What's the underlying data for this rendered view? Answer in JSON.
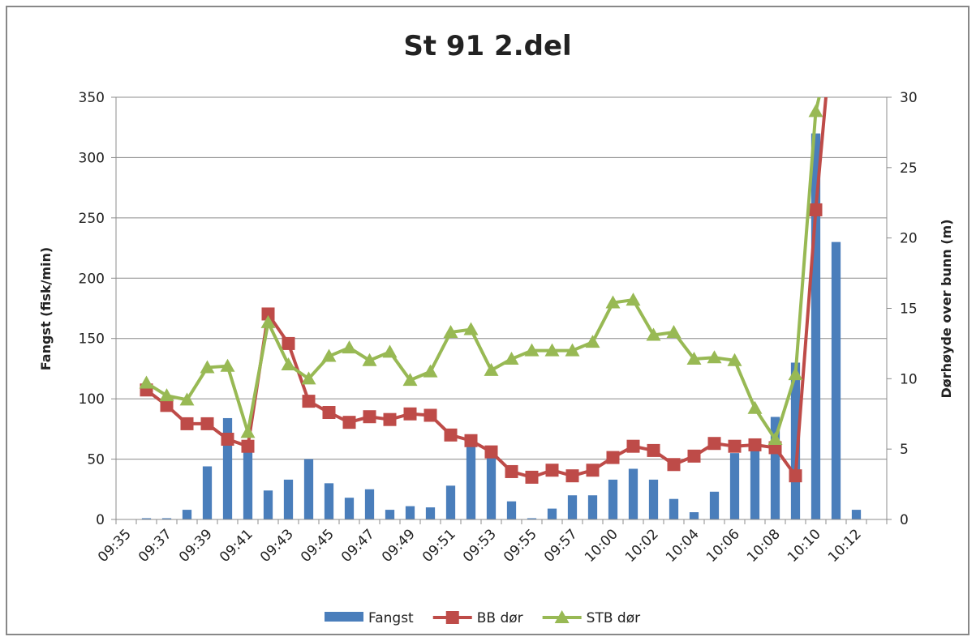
{
  "chart_data": {
    "type": "bar-line",
    "title": "St 91 2.del",
    "y_label": "Fangst (fisk/min)",
    "y2_label": "Dørhøyde over bunn (m)",
    "categories": [
      "09:35",
      null,
      "09:37",
      null,
      "09:39",
      null,
      "09:41",
      null,
      "09:43",
      null,
      "09:45",
      null,
      "09:47",
      null,
      "09:49",
      null,
      "09:51",
      null,
      "09:53",
      null,
      "09:55",
      null,
      "09:57",
      null,
      "10:00",
      null,
      "10:02",
      null,
      "10:04",
      null,
      "10:06",
      null,
      "10:08",
      null,
      "10:10",
      null,
      "10:12",
      null
    ],
    "ylim": [
      0,
      350
    ],
    "yticks": [
      0,
      50,
      100,
      150,
      200,
      250,
      300,
      350
    ],
    "y2lim": [
      0,
      30
    ],
    "y2ticks": [
      0,
      5,
      10,
      15,
      20,
      25,
      30
    ],
    "grid": true,
    "legend": "bottom",
    "series": [
      {
        "name": "Fangst",
        "type": "bar",
        "color": "#4a7ebb",
        "values": [
          null,
          1,
          1,
          8,
          44,
          84,
          58,
          24,
          33,
          50,
          30,
          18,
          25,
          8,
          11,
          10,
          28,
          65,
          52,
          15,
          1,
          9,
          20,
          20,
          33,
          42,
          33,
          17,
          6,
          23,
          55,
          60,
          85,
          130,
          320,
          230,
          8,
          null
        ]
      },
      {
        "name": "BB dør",
        "type": "line",
        "axis": "y2",
        "color": "#be4b48",
        "marker": "square",
        "values": [
          null,
          9.2,
          8.1,
          6.8,
          6.8,
          5.7,
          5.2,
          14.6,
          12.5,
          8.4,
          7.6,
          6.9,
          7.3,
          7.1,
          7.5,
          7.4,
          6.0,
          5.6,
          4.8,
          3.4,
          3.0,
          3.5,
          3.1,
          3.5,
          4.4,
          5.2,
          4.9,
          3.9,
          4.5,
          5.4,
          5.2,
          5.3,
          5.1,
          3.1,
          22.0,
          38,
          null,
          null
        ]
      },
      {
        "name": "STB dør",
        "type": "line",
        "axis": "y2",
        "color": "#98b954",
        "marker": "triangle",
        "values": [
          null,
          9.7,
          8.8,
          8.5,
          10.8,
          10.9,
          6.2,
          14.0,
          11.0,
          10.0,
          11.6,
          12.2,
          11.3,
          11.9,
          9.9,
          10.5,
          13.3,
          13.5,
          10.6,
          11.4,
          12.0,
          12.0,
          12.0,
          12.6,
          15.4,
          15.6,
          13.1,
          13.3,
          11.4,
          11.5,
          11.3,
          7.9,
          5.7,
          10.3,
          29.0,
          35,
          null,
          null
        ]
      }
    ]
  }
}
